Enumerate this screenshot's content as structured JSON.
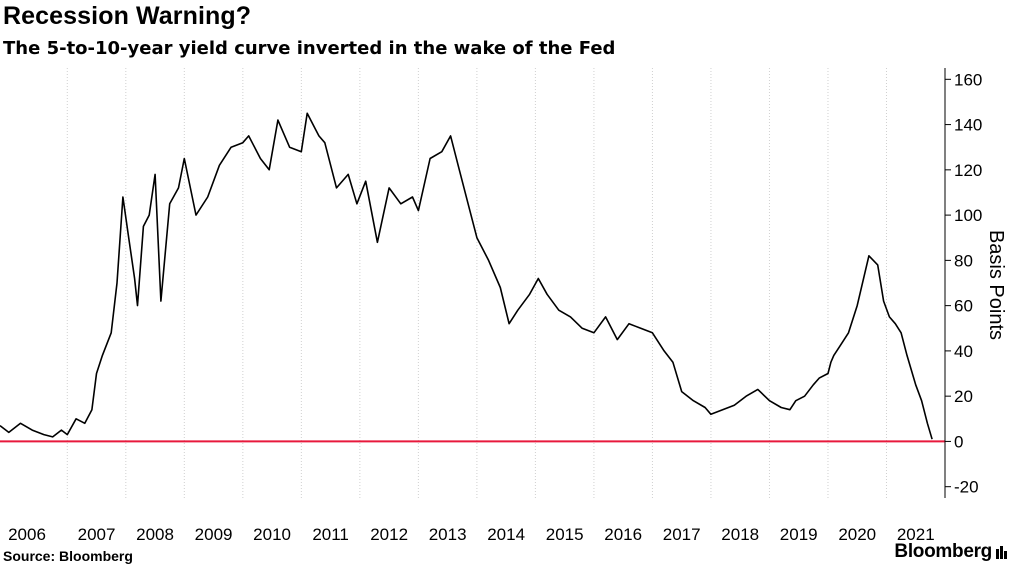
{
  "header": {
    "title": "Recession Warning?",
    "subtitle": "The 5-to-10-year yield curve inverted in the wake of the Fed"
  },
  "footer": {
    "source": "Source: Bloomberg",
    "brand": "Bloomberg"
  },
  "colors": {
    "line": "#000000",
    "zero_line": "#e8193c",
    "grid": "#d0d0d0"
  },
  "chart_data": {
    "type": "line",
    "title": "Recession Warning?",
    "subtitle": "The 5-to-10-year yield curve inverted in the wake of the Fed",
    "ylabel": "Basis Points",
    "xlabel": "",
    "ylim": [
      -25,
      165
    ],
    "y_ticks": [
      160,
      140,
      120,
      100,
      80,
      60,
      40,
      20,
      0,
      -20
    ],
    "y_tick_labels": [
      "160",
      "140",
      "120",
      "100",
      "80",
      "60",
      "40",
      "20",
      "0",
      "-20"
    ],
    "x_ticks": [
      2006,
      2007,
      2008,
      2009,
      2010,
      2011,
      2012,
      2013,
      2014,
      2015,
      2016,
      2017,
      2018,
      2019,
      2020,
      2021
    ],
    "x_tick_labels": [
      "2006",
      "2007",
      "2008",
      "2009",
      "2010",
      "2011",
      "2012",
      "2013",
      "2014",
      "2015",
      "2016",
      "2017",
      "2018",
      "2019",
      "2020",
      "2021"
    ],
    "xlim": [
      2005.85,
      2022.0
    ],
    "grid": "vertical dotted",
    "reference_line": {
      "y": 0
    },
    "series": [
      {
        "name": "",
        "x": [
          2005.85,
          2006.0,
          2006.2,
          2006.4,
          2006.6,
          2006.75,
          2006.9,
          2007.0,
          2007.15,
          2007.3,
          2007.42,
          2007.5,
          2007.6,
          2007.75,
          2007.85,
          2007.95,
          2008.05,
          2008.15,
          2008.2,
          2008.3,
          2008.4,
          2008.5,
          2008.6,
          2008.75,
          2008.9,
          2009.0,
          2009.2,
          2009.4,
          2009.6,
          2009.8,
          2010.0,
          2010.1,
          2010.3,
          2010.45,
          2010.6,
          2010.8,
          2011.0,
          2011.1,
          2011.3,
          2011.4,
          2011.6,
          2011.8,
          2011.95,
          2012.1,
          2012.3,
          2012.5,
          2012.7,
          2012.9,
          2013.0,
          2013.2,
          2013.4,
          2013.55,
          2013.7,
          2013.85,
          2014.0,
          2014.2,
          2014.4,
          2014.55,
          2014.7,
          2014.9,
          2015.05,
          2015.2,
          2015.4,
          2015.6,
          2015.8,
          2016.0,
          2016.2,
          2016.4,
          2016.6,
          2016.8,
          2017.0,
          2017.2,
          2017.35,
          2017.5,
          2017.7,
          2017.9,
          2018.0,
          2018.2,
          2018.4,
          2018.6,
          2018.8,
          2019.0,
          2019.2,
          2019.35,
          2019.45,
          2019.6,
          2019.75,
          2019.85,
          2020.0,
          2020.05,
          2020.1,
          2020.2,
          2020.35,
          2020.5,
          2020.7,
          2020.85,
          2020.95,
          2021.05,
          2021.15,
          2021.25,
          2021.35,
          2021.5,
          2021.6,
          2021.7,
          2021.78
        ],
        "values": [
          7,
          4,
          8,
          5,
          3,
          2,
          5,
          3,
          10,
          8,
          14,
          30,
          38,
          48,
          70,
          108,
          90,
          72,
          60,
          95,
          100,
          118,
          62,
          105,
          112,
          125,
          100,
          108,
          122,
          130,
          132,
          135,
          125,
          120,
          142,
          130,
          128,
          145,
          135,
          132,
          112,
          118,
          105,
          115,
          88,
          112,
          105,
          108,
          102,
          125,
          128,
          135,
          120,
          105,
          90,
          80,
          68,
          52,
          58,
          65,
          72,
          65,
          58,
          55,
          50,
          48,
          55,
          45,
          52,
          50,
          48,
          40,
          35,
          22,
          18,
          15,
          12,
          14,
          16,
          20,
          23,
          18,
          15,
          14,
          18,
          20,
          25,
          28,
          30,
          35,
          38,
          42,
          48,
          60,
          82,
          78,
          62,
          55,
          52,
          48,
          38,
          25,
          18,
          8,
          1
        ]
      }
    ]
  }
}
